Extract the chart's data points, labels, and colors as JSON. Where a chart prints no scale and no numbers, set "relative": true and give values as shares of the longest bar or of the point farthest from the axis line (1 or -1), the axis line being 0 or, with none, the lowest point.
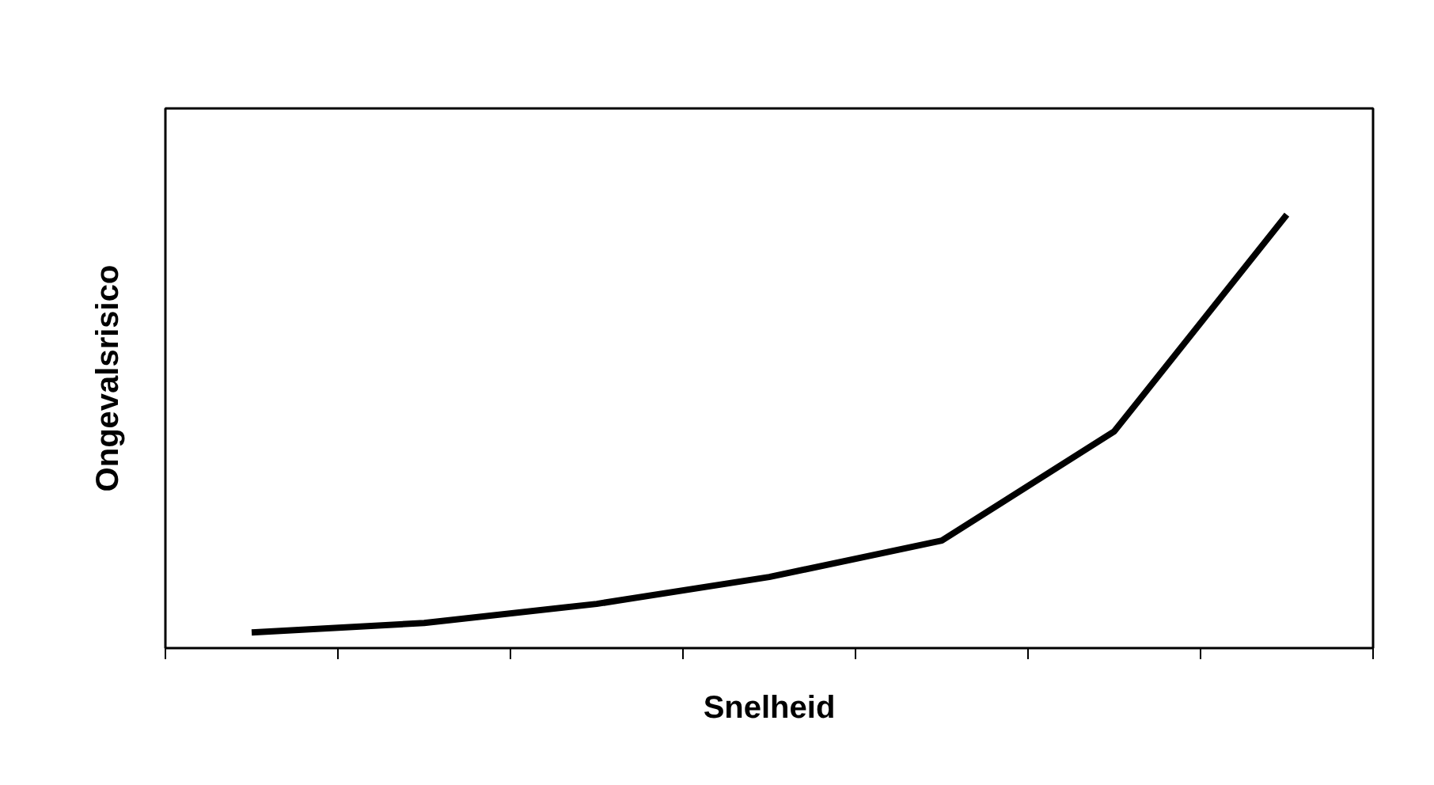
{
  "chart_data": {
    "type": "line",
    "xlabel": "Snelheid",
    "ylabel": "Ongevalsrisico",
    "relative": true,
    "categories": [
      null,
      null,
      null,
      null,
      null,
      null,
      null
    ],
    "series": [
      {
        "color": "#000000",
        "values": [
          0.036,
          0.058,
          0.102,
          0.164,
          0.248,
          0.5,
          1
        ]
      }
    ],
    "grid": false,
    "marker": "none",
    "line_style": "solid"
  }
}
